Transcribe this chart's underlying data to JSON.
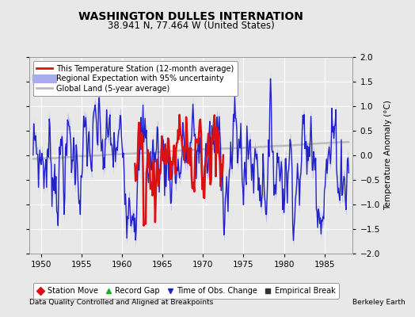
{
  "title": "WASHINGTON DULLES INTERNATION",
  "subtitle": "38.941 N, 77.464 W (United States)",
  "xlabel_left": "Data Quality Controlled and Aligned at Breakpoints",
  "xlabel_right": "Berkeley Earth",
  "ylabel": "Temperature Anomaly (°C)",
  "xlim": [
    1948.5,
    1988.5
  ],
  "ylim": [
    -2.0,
    2.0
  ],
  "xticks": [
    1950,
    1955,
    1960,
    1965,
    1970,
    1975,
    1980,
    1985
  ],
  "yticks": [
    -2.0,
    -1.5,
    -1.0,
    -0.5,
    0.0,
    0.5,
    1.0,
    1.5,
    2.0
  ],
  "bg_color": "#e8e8e8",
  "grid_color": "#ffffff",
  "regional_color": "#2222cc",
  "regional_fill_color": "#aaaaee",
  "station_color": "#dd1111",
  "global_color": "#bbbbbb",
  "title_fontsize": 10,
  "subtitle_fontsize": 8.5,
  "tick_fontsize": 7.5,
  "legend_fontsize": 7,
  "bottom_legend": [
    {
      "marker": "D",
      "color": "#dd1111",
      "label": "Station Move"
    },
    {
      "marker": "^",
      "color": "#22aa22",
      "label": "Record Gap"
    },
    {
      "marker": "v",
      "color": "#2222cc",
      "label": "Time of Obs. Change"
    },
    {
      "marker": "s",
      "color": "#333333",
      "label": "Empirical Break"
    }
  ]
}
